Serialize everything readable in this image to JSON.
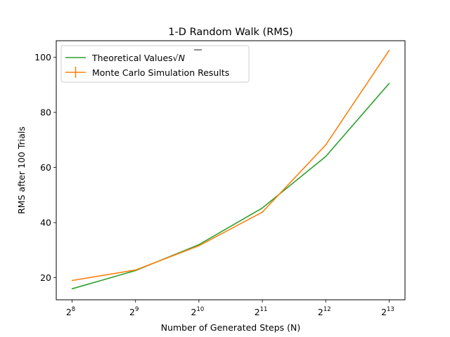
{
  "chart_data": {
    "type": "line",
    "title": "1-D Random Walk (RMS)",
    "xlabel": "Number of Generated Steps (N)",
    "ylabel": "RMS after 100 Trials",
    "x_scale": "log2",
    "x": [
      256,
      512,
      1024,
      2048,
      4096,
      8192
    ],
    "x_ticks": [
      {
        "base": "2",
        "exp": "8"
      },
      {
        "base": "2",
        "exp": "9"
      },
      {
        "base": "2",
        "exp": "10"
      },
      {
        "base": "2",
        "exp": "11"
      },
      {
        "base": "2",
        "exp": "12"
      },
      {
        "base": "2",
        "exp": "13"
      }
    ],
    "y_ticks": [
      20,
      40,
      60,
      80,
      100
    ],
    "ylim": [
      12,
      106
    ],
    "legend_position": "top-left",
    "series": [
      {
        "name": "Theoretical Values√N",
        "legend_text": "Theoretical Values",
        "legend_math": "N",
        "color": "#2ca02c",
        "values": [
          16,
          22.6,
          32,
          45.3,
          64,
          90.5
        ]
      },
      {
        "name": "Monte Carlo Simulation Results",
        "legend_text": "Monte Carlo Simulation Results",
        "color": "#ff7f0e",
        "values": [
          19,
          22.8,
          31.6,
          43.8,
          68.2,
          102.5
        ]
      }
    ]
  }
}
